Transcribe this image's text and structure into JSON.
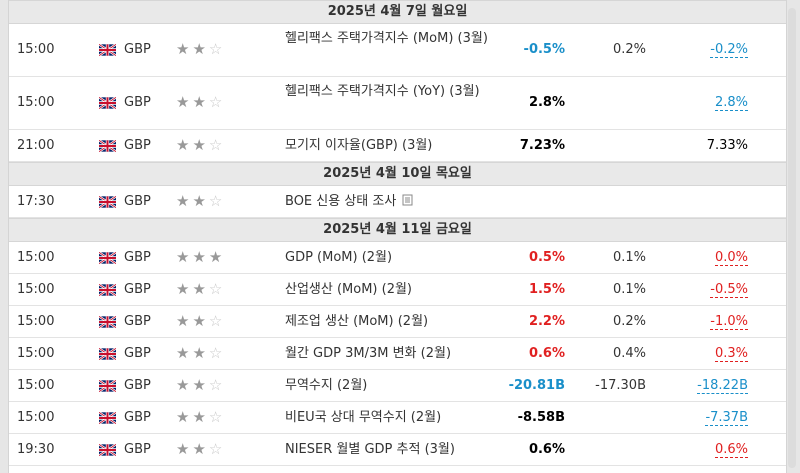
{
  "groups": [
    {
      "date": "2025년 4월 7일 월요일",
      "rows": [
        {
          "time": "15:00",
          "currency": "GBP",
          "stars": 2,
          "event": "헬리팩스 주택가격지수 (MoM) (3월)",
          "actual": "-0.5%",
          "actual_color": "pos",
          "forecast": "0.2%",
          "previous": "-0.2%",
          "previous_color": "pos",
          "prev_dash": true,
          "height": 52,
          "two_line": true
        },
        {
          "time": "15:00",
          "currency": "GBP",
          "stars": 2,
          "event": "헬리팩스 주택가격지수 (YoY) (3월)",
          "actual": "2.8%",
          "actual_color": "blk",
          "forecast": "",
          "previous": "2.8%",
          "previous_color": "pos",
          "prev_dash": true,
          "height": 52,
          "two_line": true
        },
        {
          "time": "21:00",
          "currency": "GBP",
          "stars": 2,
          "event": "모기지 이자율(GBP) (3월)",
          "actual": "7.23%",
          "actual_color": "blk",
          "forecast": "",
          "previous": "7.33%",
          "previous_color": "blk",
          "prev_dash": false,
          "height": 31
        }
      ]
    },
    {
      "date": "2025년 4월 10일 목요일",
      "rows": [
        {
          "time": "17:30",
          "currency": "GBP",
          "stars": 2,
          "event": "BOE 신용 상태 조사",
          "doc_icon": true,
          "actual": "",
          "actual_color": "blk",
          "forecast": "",
          "previous": "",
          "previous_color": "blk",
          "prev_dash": false,
          "height": 31
        }
      ]
    },
    {
      "date": "2025년 4월 11일 금요일",
      "rows": [
        {
          "time": "15:00",
          "currency": "GBP",
          "stars": 3,
          "event": "GDP (MoM) (2월)",
          "actual": "0.5%",
          "actual_color": "neg",
          "forecast": "0.1%",
          "previous": "0.0%",
          "previous_color": "neg",
          "prev_dash": true,
          "height": 31
        },
        {
          "time": "15:00",
          "currency": "GBP",
          "stars": 2,
          "event": "산업생산 (MoM) (2월)",
          "actual": "1.5%",
          "actual_color": "neg",
          "forecast": "0.1%",
          "previous": "-0.5%",
          "previous_color": "neg",
          "prev_dash": true,
          "height": 31
        },
        {
          "time": "15:00",
          "currency": "GBP",
          "stars": 2,
          "event": "제조업 생산 (MoM) (2월)",
          "actual": "2.2%",
          "actual_color": "neg",
          "forecast": "0.2%",
          "previous": "-1.0%",
          "previous_color": "neg",
          "prev_dash": true,
          "height": 31
        },
        {
          "time": "15:00",
          "currency": "GBP",
          "stars": 2,
          "event": "월간 GDP 3M/3M 변화 (2월)",
          "actual": "0.6%",
          "actual_color": "neg",
          "forecast": "0.4%",
          "previous": "0.3%",
          "previous_color": "neg",
          "prev_dash": true,
          "height": 31
        },
        {
          "time": "15:00",
          "currency": "GBP",
          "stars": 2,
          "event": "무역수지 (2월)",
          "actual": "-20.81B",
          "actual_color": "pos",
          "forecast": "-17.30B",
          "previous": "-18.22B",
          "previous_color": "pos",
          "prev_dash": true,
          "height": 31
        },
        {
          "time": "15:00",
          "currency": "GBP",
          "stars": 2,
          "event": "비EU국 상대 무역수지 (2월)",
          "actual": "-8.58B",
          "actual_color": "blk",
          "forecast": "",
          "previous": "-7.37B",
          "previous_color": "pos",
          "prev_dash": true,
          "height": 31
        },
        {
          "time": "19:30",
          "currency": "GBP",
          "stars": 2,
          "event": "NIESER 월별 GDP 추적 (3월)",
          "actual": "0.6%",
          "actual_color": "blk",
          "forecast": "",
          "previous": "0.6%",
          "previous_color": "neg",
          "prev_dash": true,
          "height": 31
        }
      ]
    }
  ],
  "flag_icon": "uk-flag-icon",
  "star_icon": "star-icon",
  "doc_icon": "document-icon"
}
